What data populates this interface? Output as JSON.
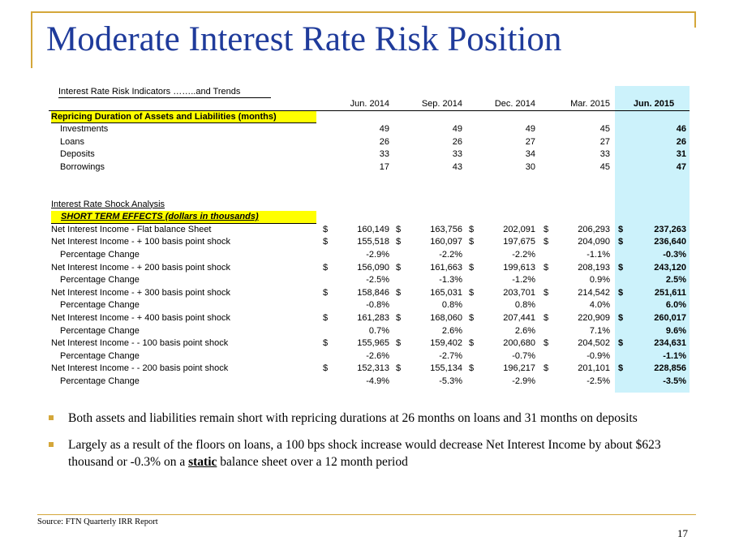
{
  "title": "Moderate Interest Rate Risk Position",
  "table": {
    "caption": "Interest Rate Risk Indicators ……..and Trends",
    "columns": [
      "Jun. 2014",
      "Sep. 2014",
      "Dec. 2014",
      "Mar. 2015",
      "Jun. 2015"
    ],
    "repricing_header": "Repricing Duration of Assets and Liabilities (months)",
    "repricing_rows": [
      {
        "label": "Investments",
        "values": [
          "49",
          "49",
          "49",
          "45",
          "46"
        ]
      },
      {
        "label": "Loans",
        "values": [
          "26",
          "26",
          "27",
          "27",
          "26"
        ]
      },
      {
        "label": "Deposits",
        "values": [
          "33",
          "33",
          "34",
          "33",
          "31"
        ]
      },
      {
        "label": "Borrowings",
        "values": [
          "17",
          "43",
          "30",
          "45",
          "47"
        ]
      }
    ],
    "shock_title": "Interest Rate Shock Analysis",
    "shock_header": "SHORT TERM EFFECTS (dollars in thousands)",
    "currency_symbol": "$",
    "shock_rows": [
      {
        "label": "Net Interest Income - Flat balance Sheet",
        "values": [
          "160,149",
          "163,756",
          "202,091",
          "206,293",
          "237,263"
        ],
        "dollar": true
      },
      {
        "label": "Net Interest Income - + 100 basis point shock",
        "values": [
          "155,518",
          "160,097",
          "197,675",
          "204,090",
          "236,640"
        ],
        "dollar": true
      },
      {
        "label": "Percentage Change",
        "values": [
          "-2.9%",
          "-2.2%",
          "-2.2%",
          "-1.1%",
          "-0.3%"
        ],
        "dollar": false
      },
      {
        "label": "Net Interest Income - + 200 basis point shock",
        "values": [
          "156,090",
          "161,663",
          "199,613",
          "208,193",
          "243,120"
        ],
        "dollar": true
      },
      {
        "label": "Percentage Change",
        "values": [
          "-2.5%",
          "-1.3%",
          "-1.2%",
          "0.9%",
          "2.5%"
        ],
        "dollar": false
      },
      {
        "label": "Net Interest Income - + 300 basis point shock",
        "values": [
          "158,846",
          "165,031",
          "203,701",
          "214,542",
          "251,611"
        ],
        "dollar": true
      },
      {
        "label": "Percentage Change",
        "values": [
          "-0.8%",
          "0.8%",
          "0.8%",
          "4.0%",
          "6.0%"
        ],
        "dollar": false
      },
      {
        "label": "Net Interest Income - + 400 basis point shock",
        "values": [
          "161,283",
          "168,060",
          "207,441",
          "220,909",
          "260,017"
        ],
        "dollar": true
      },
      {
        "label": "Percentage Change",
        "values": [
          "0.7%",
          "2.6%",
          "2.6%",
          "7.1%",
          "9.6%"
        ],
        "dollar": false
      },
      {
        "label": "Net Interest Income - - 100 basis point shock",
        "values": [
          "155,965",
          "159,402",
          "200,680",
          "204,502",
          "234,631"
        ],
        "dollar": true
      },
      {
        "label": "Percentage Change",
        "values": [
          "-2.6%",
          "-2.7%",
          "-0.7%",
          "-0.9%",
          "-1.1%"
        ],
        "dollar": false
      },
      {
        "label": "Net Interest Income - - 200 basis point shock",
        "values": [
          "152,313",
          "155,134",
          "196,217",
          "201,101",
          "228,856"
        ],
        "dollar": true
      },
      {
        "label": "Percentage Change",
        "values": [
          "-4.9%",
          "-5.3%",
          "-2.9%",
          "-2.5%",
          "-3.5%"
        ],
        "dollar": false
      }
    ]
  },
  "bullets": {
    "b1": "Both assets and liabilities  remain  short with repricing durations at 26 months on loans and 31 months on deposits",
    "b2_pre": "Largely as a result of the floors on loans, a 100 bps shock increase would decrease Net Interest Income by about $623  thousand or -0.3% on a ",
    "b2_static": "static",
    "b2_post": " balance sheet over a 12 month period"
  },
  "source": "Source:  FTN Quarterly IRR Report",
  "page_number": "17",
  "colors": {
    "title": "#1f3b9b",
    "accent_gold": "#d4a73a",
    "highlight_column": "#ccf2fb",
    "section_yellow": "#ffff00"
  }
}
